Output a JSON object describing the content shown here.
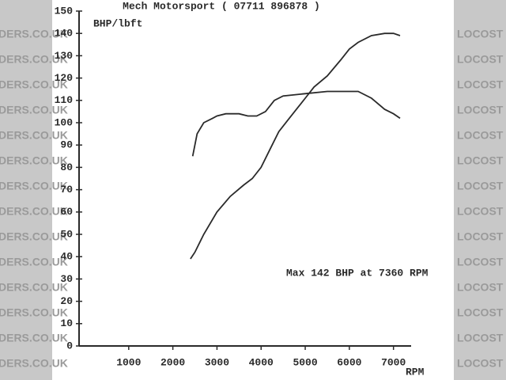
{
  "chart_data": {
    "type": "line",
    "title": "Mech Motorsport  ( 07711 896878 )",
    "y_label": "BHP/lbft",
    "x_label": "RPM",
    "annotation": "Max 142 BHP at 7360 RPM",
    "watermark": [
      "DERS.CO.UK",
      "LOCOST"
    ],
    "xlim": [
      0,
      7400
    ],
    "ylim": [
      0,
      150
    ],
    "xticks": [
      1000,
      2000,
      3000,
      4000,
      5000,
      6000,
      7000
    ],
    "yticks": [
      0,
      10,
      20,
      30,
      40,
      50,
      60,
      70,
      80,
      90,
      100,
      110,
      120,
      130,
      140,
      150
    ],
    "series": [
      {
        "color": "#2a2a2a",
        "x": [
          2450,
          2550,
          2700,
          2900,
          3000,
          3200,
          3500,
          3700,
          3900,
          4100,
          4300,
          4500,
          5000,
          5500,
          6000,
          6200,
          6500,
          6800,
          7000,
          7150
        ],
        "values": [
          85,
          95,
          100,
          102,
          103,
          104,
          104,
          103,
          103,
          105,
          110,
          112,
          113,
          114,
          114,
          114,
          111,
          106,
          104,
          102
        ]
      },
      {
        "color": "#2a2a2a",
        "x": [
          2400,
          2500,
          2700,
          3000,
          3300,
          3600,
          3800,
          4000,
          4200,
          4400,
          4600,
          4800,
          5000,
          5200,
          5500,
          5800,
          6000,
          6200,
          6500,
          6800,
          7000,
          7150
        ],
        "values": [
          39,
          42,
          50,
          60,
          67,
          72,
          75,
          80,
          88,
          96,
          101,
          106,
          111,
          116,
          121,
          128,
          133,
          136,
          139,
          140,
          140,
          139
        ]
      }
    ]
  }
}
